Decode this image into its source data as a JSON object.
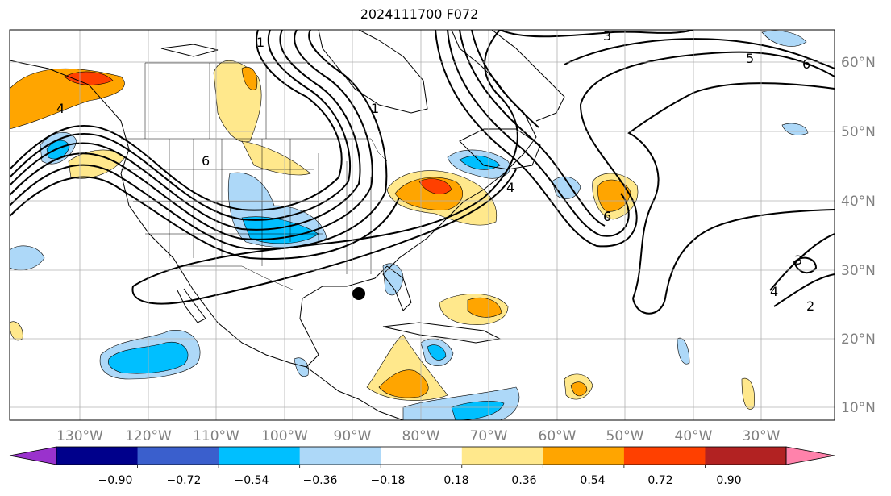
{
  "title": "2024111700 F072",
  "lon_labels": [
    "130°W",
    "120°W",
    "110°W",
    "100°W",
    "90°W",
    "80°W",
    "70°W",
    "60°W",
    "50°W",
    "40°W",
    "30°W"
  ],
  "lat_labels": [
    "60°N",
    "50°N",
    "40°N",
    "30°N",
    "20°N",
    "10°N"
  ],
  "colorbar": {
    "ticks": [
      "−0.90",
      "−0.72",
      "−0.54",
      "−0.36",
      "−0.18",
      "0.18",
      "0.36",
      "0.54",
      "0.72",
      "0.90"
    ],
    "colors": [
      "#9a32cd",
      "#00008b",
      "#3a5fcd",
      "#00bfff",
      "#add8f8",
      "#ffffff",
      "#ffe88c",
      "#ffa500",
      "#ff4000",
      "#b22222",
      "#ff82ab"
    ]
  },
  "contour_labels": [
    "1",
    "3",
    "5",
    "6",
    "4",
    "6",
    "1",
    "2",
    "3",
    "4",
    "6",
    "4"
  ],
  "marker": "storm-center-dot"
}
